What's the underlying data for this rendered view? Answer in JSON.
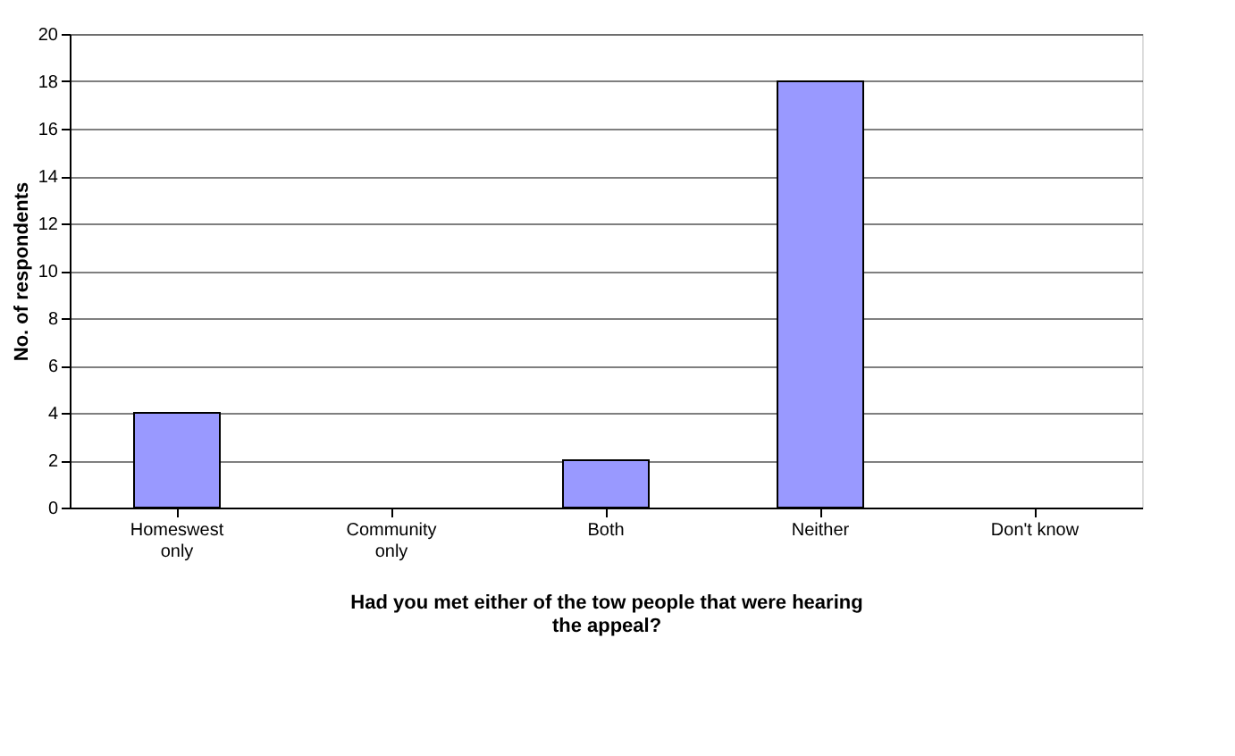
{
  "chart_data": {
    "type": "bar",
    "categories": [
      "Homeswest\nonly",
      "Community\nonly",
      "Both",
      "Neither",
      "Don't know"
    ],
    "values": [
      4,
      0,
      2,
      18,
      0
    ],
    "color": "#9999ff",
    "xlabel": "Had you met either of the tow people that were hearing the appeal?",
    "ylabel": "No. of respondents",
    "ylim": [
      0,
      20
    ],
    "yticks": [
      0,
      2,
      4,
      6,
      8,
      10,
      12,
      14,
      16,
      18,
      20
    ],
    "grid": "y"
  }
}
